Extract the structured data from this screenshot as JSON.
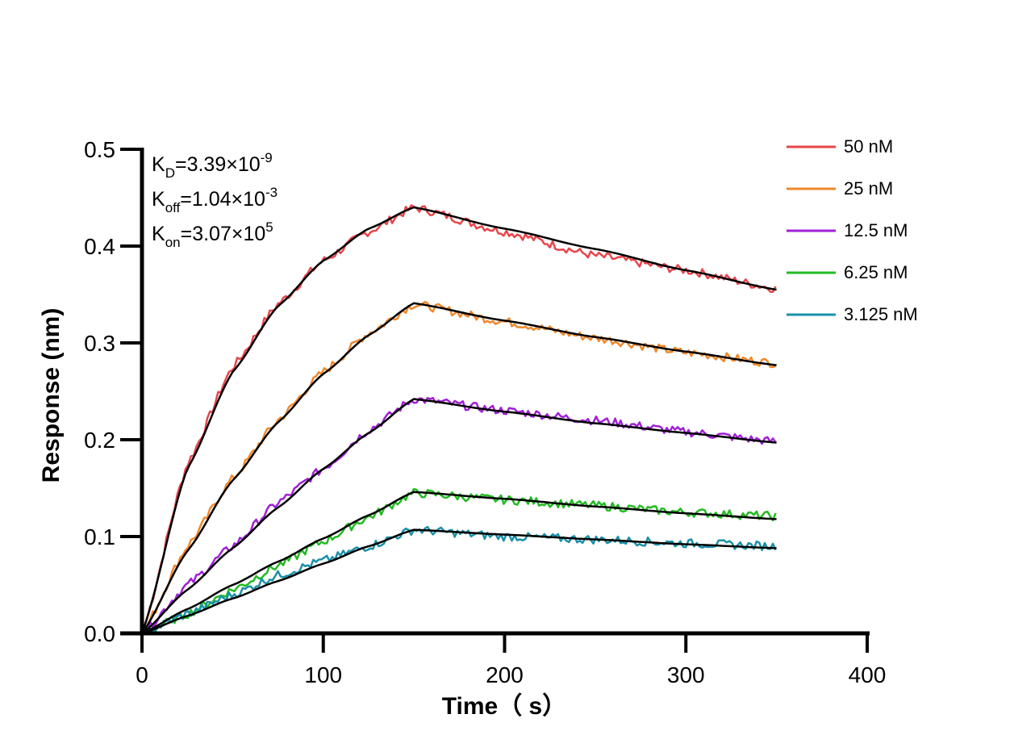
{
  "chart_data": {
    "type": "line",
    "xlabel": "Time（ s）",
    "ylabel": "Response (nm)",
    "xlim": [
      0,
      400
    ],
    "ylim": [
      0,
      0.5
    ],
    "x_ticks": [
      "0",
      "100",
      "200",
      "300",
      "400"
    ],
    "y_ticks": [
      "0.0",
      "0.1",
      "0.2",
      "0.3",
      "0.4",
      "0.5"
    ],
    "annotations": {
      "kd": {
        "base": "K",
        "sub": "D",
        "value": "=3.39×10",
        "exp": "-9"
      },
      "koff": {
        "base": "K",
        "sub": "off",
        "value": "=1.04×10",
        "exp": "-3"
      },
      "kon": {
        "base": "K",
        "sub": "on",
        "value": "=3.07×10",
        "exp": "5"
      }
    },
    "association_end_s": 150,
    "end_s": 350,
    "fit_color": "#000000",
    "series": [
      {
        "name": "50 nM",
        "color": "#e8454a",
        "x": [
          0,
          25,
          50,
          75,
          100,
          125,
          150,
          200,
          250,
          300,
          350
        ],
        "values": [
          0,
          0.175,
          0.275,
          0.34,
          0.385,
          0.415,
          0.44,
          0.415,
          0.39,
          0.375,
          0.356
        ]
      },
      {
        "name": "25 nM",
        "color": "#f0882a",
        "x": [
          0,
          25,
          50,
          75,
          100,
          125,
          150,
          200,
          250,
          300,
          350
        ],
        "values": [
          0,
          0.09,
          0.16,
          0.22,
          0.27,
          0.31,
          0.34,
          0.322,
          0.305,
          0.29,
          0.279
        ]
      },
      {
        "name": "12.5 nM",
        "color": "#a020d8",
        "x": [
          0,
          25,
          50,
          75,
          100,
          125,
          150,
          200,
          250,
          300,
          350
        ],
        "values": [
          0,
          0.05,
          0.09,
          0.135,
          0.17,
          0.21,
          0.242,
          0.23,
          0.22,
          0.208,
          0.198
        ]
      },
      {
        "name": "6.25 nM",
        "color": "#22bb22",
        "x": [
          0,
          25,
          50,
          75,
          100,
          125,
          150,
          200,
          250,
          300,
          350
        ],
        "values": [
          0,
          0.02,
          0.045,
          0.07,
          0.095,
          0.12,
          0.145,
          0.138,
          0.132,
          0.125,
          0.121
        ]
      },
      {
        "name": "3.125 nM",
        "color": "#1a90a8",
        "x": [
          0,
          25,
          50,
          75,
          100,
          125,
          150,
          200,
          250,
          300,
          350
        ],
        "values": [
          0,
          0.02,
          0.04,
          0.06,
          0.075,
          0.09,
          0.107,
          0.1,
          0.097,
          0.093,
          0.09
        ]
      }
    ],
    "fits": [
      {
        "x": [
          0,
          25,
          50,
          75,
          100,
          125,
          150,
          200,
          250,
          300,
          350
        ],
        "values": [
          0,
          0.17,
          0.27,
          0.338,
          0.385,
          0.418,
          0.44,
          0.418,
          0.397,
          0.375,
          0.355
        ]
      },
      {
        "x": [
          0,
          25,
          50,
          75,
          100,
          125,
          150,
          200,
          250,
          300,
          350
        ],
        "values": [
          0,
          0.085,
          0.158,
          0.218,
          0.268,
          0.308,
          0.341,
          0.323,
          0.306,
          0.291,
          0.277
        ]
      },
      {
        "x": [
          0,
          25,
          50,
          75,
          100,
          125,
          150,
          200,
          250,
          300,
          350
        ],
        "values": [
          0,
          0.045,
          0.088,
          0.13,
          0.17,
          0.207,
          0.242,
          0.229,
          0.217,
          0.207,
          0.197
        ]
      },
      {
        "x": [
          0,
          25,
          50,
          75,
          100,
          125,
          150,
          200,
          250,
          300,
          350
        ],
        "values": [
          0,
          0.025,
          0.05,
          0.074,
          0.098,
          0.122,
          0.146,
          0.139,
          0.131,
          0.124,
          0.118
        ]
      },
      {
        "x": [
          0,
          25,
          50,
          75,
          100,
          125,
          150,
          200,
          250,
          300,
          350
        ],
        "values": [
          0,
          0.018,
          0.036,
          0.054,
          0.072,
          0.09,
          0.107,
          0.102,
          0.097,
          0.092,
          0.088
        ]
      }
    ]
  }
}
